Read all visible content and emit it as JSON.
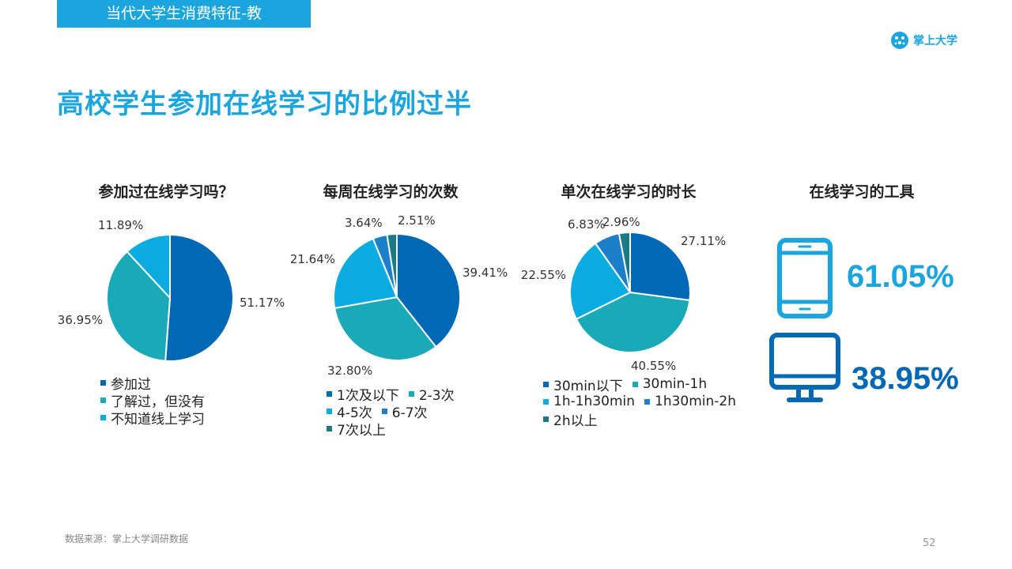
{
  "header": {
    "section_tab": "当代大学生消费特征-教",
    "brand": "掌上大学"
  },
  "title": "高校学生参加在线学习的比例过半",
  "chart_data": [
    {
      "type": "pie",
      "title": "参加过在线学习吗？",
      "categories": [
        "参加过",
        "了解过，但没有",
        "不知道线上学习"
      ],
      "values": [
        51.17,
        36.95,
        11.89
      ],
      "value_labels": [
        "51.17%",
        "36.95%",
        "11.89%"
      ],
      "colors": [
        "#0068b4",
        "#19a9b8",
        "#0aabe0"
      ],
      "legend_rows": [
        [
          0
        ],
        [
          1
        ],
        [
          2
        ]
      ],
      "legend_position": "bottom"
    },
    {
      "type": "pie",
      "title": "每周在线学习的次数",
      "categories": [
        "1次及以下",
        "2-3次",
        "4-5次",
        "6-7次",
        "7次以上"
      ],
      "values": [
        39.41,
        32.8,
        21.64,
        3.64,
        2.51
      ],
      "value_labels": [
        "39.41%",
        "32.80%",
        "21.64%",
        "3.64%",
        "2.51%"
      ],
      "colors": [
        "#0068b4",
        "#19a9b8",
        "#0aabe0",
        "#1b7fcc",
        "#1b7a85"
      ],
      "legend_rows": [
        [
          0,
          1
        ],
        [
          2,
          3
        ],
        [
          4
        ]
      ],
      "legend_position": "bottom"
    },
    {
      "type": "pie",
      "title": "单次在线学习的时长",
      "categories": [
        "30min以下",
        "30min-1h",
        "1h-1h30min",
        "1h30min-2h",
        "2h以上"
      ],
      "values": [
        27.11,
        40.55,
        22.55,
        6.83,
        2.96
      ],
      "value_labels": [
        "27.11%",
        "40.55%",
        "22.55%",
        "6.83%",
        "2.96%"
      ],
      "colors": [
        "#0068b4",
        "#19a9b8",
        "#0aabe0",
        "#1b7fcc",
        "#1b7a85"
      ],
      "legend_rows": [
        [
          0,
          1
        ],
        [
          2,
          3
        ],
        [
          4
        ]
      ],
      "legend_position": "bottom"
    }
  ],
  "tools": {
    "title": "在线学习的工具",
    "items": [
      {
        "icon": "tablet-icon",
        "value": "61.05%",
        "color": "#1aa5df"
      },
      {
        "icon": "monitor-icon",
        "value": "38.95%",
        "color": "#0068b4"
      }
    ]
  },
  "footer": {
    "source": "数据来源：掌上大学调研数据",
    "page": "52"
  }
}
